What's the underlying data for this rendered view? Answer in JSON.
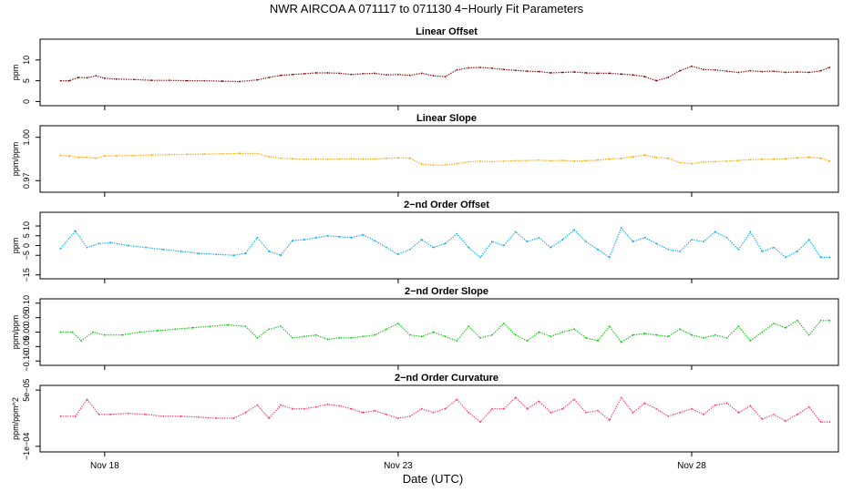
{
  "figure": {
    "title": "NWR   AIRCOA A   071117 to 071130   4−Hourly Fit Parameters",
    "xlabel": "Date (UTC)",
    "x_tick_labels": [
      "Nov 18",
      "Nov 23",
      "Nov 28"
    ],
    "x_tick_values": [
      18,
      23,
      28
    ],
    "xlim": [
      16.9,
      30.5
    ]
  },
  "chart_data": [
    {
      "type": "line",
      "title": "Linear Offset",
      "ylabel": "ppm",
      "ylim": [
        -1,
        15
      ],
      "yticks": [
        0,
        5,
        10
      ],
      "yticklabels": [
        "0",
        "5",
        "10"
      ],
      "color": "#8b0000",
      "x": [
        17.25,
        17.4,
        17.55,
        17.7,
        17.85,
        18.0,
        18.2,
        18.5,
        18.8,
        19.1,
        19.4,
        19.7,
        20.0,
        20.3,
        20.6,
        20.8,
        21.0,
        21.2,
        21.4,
        21.6,
        21.8,
        22.0,
        22.2,
        22.4,
        22.6,
        22.8,
        23.0,
        23.2,
        23.4,
        23.6,
        23.8,
        24.0,
        24.2,
        24.4,
        24.6,
        24.8,
        25.0,
        25.2,
        25.4,
        25.6,
        25.8,
        26.0,
        26.2,
        26.4,
        26.6,
        26.8,
        27.0,
        27.2,
        27.4,
        27.6,
        27.8,
        28.0,
        28.2,
        28.4,
        28.6,
        28.8,
        29.0,
        29.2,
        29.4,
        29.6,
        29.8,
        30.0,
        30.2,
        30.35
      ],
      "values": [
        5.0,
        5.0,
        5.8,
        5.7,
        6.2,
        5.6,
        5.4,
        5.3,
        5.1,
        5.1,
        5.0,
        5.0,
        4.9,
        4.8,
        5.2,
        5.8,
        6.3,
        6.5,
        6.7,
        6.9,
        6.9,
        6.8,
        6.5,
        6.7,
        6.8,
        6.4,
        6.5,
        6.3,
        6.8,
        6.2,
        6.0,
        7.6,
        8.1,
        8.2,
        8.0,
        7.7,
        7.5,
        7.3,
        7.2,
        6.9,
        7.0,
        7.1,
        6.9,
        6.8,
        6.8,
        6.6,
        6.4,
        6.0,
        5.0,
        5.8,
        7.4,
        8.5,
        7.7,
        7.6,
        7.3,
        7.0,
        7.4,
        7.2,
        7.3,
        7.0,
        7.1,
        7.0,
        7.4,
        8.2
      ]
    },
    {
      "type": "line",
      "title": "Linear Slope",
      "ylabel": "ppm/ppm",
      "ylim": [
        0.962,
        1.008
      ],
      "yticks": [
        0.97,
        1.0
      ],
      "yticklabels": [
        "0.97",
        "1.00"
      ],
      "color": "#ffa500",
      "x": [
        17.25,
        17.4,
        17.55,
        17.7,
        17.85,
        18.0,
        18.2,
        18.5,
        18.8,
        19.1,
        19.4,
        19.7,
        20.0,
        20.3,
        20.6,
        20.8,
        21.0,
        21.2,
        21.4,
        21.6,
        21.8,
        22.0,
        22.2,
        22.4,
        22.6,
        22.8,
        23.0,
        23.2,
        23.4,
        23.6,
        23.8,
        24.0,
        24.2,
        24.4,
        24.6,
        24.8,
        25.0,
        25.2,
        25.4,
        25.6,
        25.8,
        26.0,
        26.2,
        26.4,
        26.6,
        26.8,
        27.0,
        27.2,
        27.4,
        27.6,
        27.8,
        28.0,
        28.2,
        28.4,
        28.6,
        28.8,
        29.0,
        29.2,
        29.4,
        29.6,
        29.8,
        30.0,
        30.2,
        30.35
      ],
      "values": [
        0.9875,
        0.987,
        0.9862,
        0.9862,
        0.9855,
        0.9872,
        0.9872,
        0.9874,
        0.9878,
        0.988,
        0.9882,
        0.9884,
        0.9886,
        0.9889,
        0.9888,
        0.9865,
        0.9855,
        0.9852,
        0.9848,
        0.985,
        0.9848,
        0.985,
        0.9852,
        0.985,
        0.985,
        0.9855,
        0.9858,
        0.9855,
        0.9815,
        0.9808,
        0.9808,
        0.9818,
        0.983,
        0.9835,
        0.9832,
        0.9835,
        0.9838,
        0.984,
        0.9842,
        0.9838,
        0.984,
        0.9835,
        0.9838,
        0.9842,
        0.985,
        0.9855,
        0.9865,
        0.9878,
        0.986,
        0.9855,
        0.9825,
        0.9818,
        0.9828,
        0.9832,
        0.9835,
        0.984,
        0.9845,
        0.9848,
        0.9848,
        0.9852,
        0.9858,
        0.9862,
        0.9855,
        0.9835
      ]
    },
    {
      "type": "line",
      "title": "2−nd Order Offset",
      "ylabel": "ppm",
      "ylim": [
        -17,
        17
      ],
      "yticks": [
        -15,
        -5,
        0,
        5,
        10
      ],
      "yticklabels": [
        "−15",
        "−5",
        "0",
        "5",
        "10"
      ],
      "color": "#00aaee",
      "x": [
        17.25,
        17.5,
        17.7,
        17.9,
        18.1,
        18.4,
        18.7,
        19.0,
        19.3,
        19.6,
        19.9,
        20.2,
        20.4,
        20.6,
        20.8,
        21.0,
        21.2,
        21.4,
        21.6,
        21.8,
        22.0,
        22.2,
        22.4,
        22.6,
        22.8,
        23.0,
        23.2,
        23.4,
        23.6,
        23.8,
        24.0,
        24.2,
        24.4,
        24.6,
        24.8,
        25.0,
        25.2,
        25.4,
        25.6,
        25.8,
        26.0,
        26.2,
        26.4,
        26.6,
        26.8,
        27.0,
        27.2,
        27.4,
        27.6,
        27.8,
        28.0,
        28.2,
        28.4,
        28.6,
        28.8,
        29.0,
        29.2,
        29.4,
        29.6,
        29.8,
        30.0,
        30.2,
        30.35
      ],
      "values": [
        -1.5,
        7.5,
        -1.0,
        1.0,
        1.5,
        0.0,
        -1.0,
        -2.0,
        -3.0,
        -4.0,
        -4.5,
        -5.0,
        -4.0,
        4.0,
        -3.0,
        -5.0,
        2.5,
        3.0,
        4.0,
        5.0,
        4.5,
        4.0,
        5.5,
        2.5,
        -1.0,
        -4.5,
        -2.0,
        3.0,
        -1.0,
        1.0,
        6.0,
        -1.0,
        -6.0,
        2.0,
        0.0,
        7.0,
        2.0,
        4.0,
        -1.0,
        3.0,
        8.0,
        2.0,
        -2.0,
        -6.0,
        9.0,
        2.0,
        4.0,
        1.0,
        -2.0,
        -3.0,
        3.0,
        2.0,
        7.0,
        4.0,
        -2.0,
        7.0,
        -3.0,
        -1.0,
        -6.0,
        -3.0,
        3.0,
        -6.0,
        -6.0
      ]
    },
    {
      "type": "line",
      "title": "2−nd Order Slope",
      "ylabel": "ppm/ppm",
      "ylim": [
        -0.115,
        0.115
      ],
      "yticks": [
        -0.1,
        -0.05,
        0.0,
        0.05,
        0.1
      ],
      "yticklabels": [
        "−0.10",
        "−0.05",
        "0.00",
        "0.05",
        "0.10"
      ],
      "color": "#00cc00",
      "x": [
        17.25,
        17.45,
        17.6,
        17.8,
        18.0,
        18.3,
        18.6,
        18.9,
        19.2,
        19.5,
        19.8,
        20.1,
        20.4,
        20.6,
        20.8,
        21.0,
        21.2,
        21.4,
        21.6,
        21.8,
        22.0,
        22.2,
        22.4,
        22.6,
        22.8,
        23.0,
        23.2,
        23.4,
        23.6,
        23.8,
        24.0,
        24.2,
        24.4,
        24.6,
        24.8,
        25.0,
        25.2,
        25.4,
        25.6,
        25.8,
        26.0,
        26.2,
        26.4,
        26.6,
        26.8,
        27.0,
        27.2,
        27.4,
        27.6,
        27.8,
        28.0,
        28.2,
        28.4,
        28.6,
        28.8,
        29.0,
        29.2,
        29.4,
        29.6,
        29.8,
        30.0,
        30.2,
        30.35
      ],
      "values": [
        0.0,
        0.0,
        -0.03,
        0.0,
        -0.01,
        -0.01,
        0.0,
        0.005,
        0.01,
        0.015,
        0.02,
        0.025,
        0.02,
        -0.02,
        0.01,
        0.02,
        -0.02,
        -0.015,
        -0.01,
        -0.025,
        -0.02,
        -0.02,
        -0.015,
        -0.01,
        0.01,
        0.03,
        -0.01,
        -0.015,
        0.0,
        -0.015,
        -0.03,
        0.02,
        -0.02,
        -0.01,
        0.03,
        -0.01,
        -0.03,
        0.0,
        -0.015,
        0.0,
        0.01,
        -0.02,
        -0.03,
        0.02,
        -0.035,
        -0.01,
        -0.005,
        -0.01,
        -0.015,
        0.01,
        -0.01,
        -0.02,
        -0.01,
        -0.02,
        0.02,
        -0.03,
        0.0,
        0.03,
        0.015,
        0.04,
        -0.01,
        0.04,
        0.04
      ]
    },
    {
      "type": "line",
      "title": "2−nd Order Curvature",
      "ylabel": "ppm/ppm^2",
      "ylim": [
        -0.000115,
        6.25e-05
      ],
      "yticks": [
        -0.0001,
        5e-05
      ],
      "yticklabels": [
        "−1e−04",
        "5e−05"
      ],
      "color": "#ff3366",
      "x": [
        17.25,
        17.5,
        17.7,
        17.9,
        18.1,
        18.4,
        18.7,
        19.0,
        19.3,
        19.6,
        19.9,
        20.2,
        20.4,
        20.6,
        20.8,
        21.0,
        21.2,
        21.4,
        21.6,
        21.8,
        22.0,
        22.2,
        22.4,
        22.6,
        22.8,
        23.0,
        23.2,
        23.4,
        23.6,
        23.8,
        24.0,
        24.2,
        24.4,
        24.6,
        24.8,
        25.0,
        25.2,
        25.4,
        25.6,
        25.8,
        26.0,
        26.2,
        26.4,
        26.6,
        26.8,
        27.0,
        27.2,
        27.4,
        27.6,
        27.8,
        28.0,
        28.2,
        28.4,
        28.6,
        28.8,
        29.0,
        29.2,
        29.4,
        29.6,
        29.8,
        30.0,
        30.2,
        30.35
      ],
      "values": [
        -2e-05,
        -2e-05,
        2.5e-05,
        -1.5e-05,
        -1.5e-05,
        -1.2e-05,
        -1.5e-05,
        -2e-05,
        -2e-05,
        -2.2e-05,
        -2.5e-05,
        -2.5e-05,
        -1e-05,
        1e-05,
        -2.5e-05,
        1e-05,
        0.0,
        0.0,
        5e-06,
        1.2e-05,
        8e-06,
        0.0,
        -1e-05,
        -5e-06,
        -1.5e-05,
        -2.5e-05,
        -2e-05,
        0.0,
        -1e-05,
        0.0,
        2.5e-05,
        -1e-05,
        -3.5e-05,
        0.0,
        0.0,
        3e-05,
        0.0,
        2e-05,
        -1e-05,
        0.0,
        2.5e-05,
        -1e-05,
        -5e-06,
        -3e-05,
        3e-05,
        -1e-05,
        1.5e-05,
        0.0,
        -2e-05,
        -1e-05,
        0.0,
        -1.5e-05,
        1e-05,
        1.5e-05,
        -1e-05,
        8e-06,
        -2.75e-05,
        -1.5e-05,
        -3.25e-05,
        -1.5e-05,
        5e-06,
        -3.5e-05,
        -3.5e-05
      ]
    }
  ]
}
